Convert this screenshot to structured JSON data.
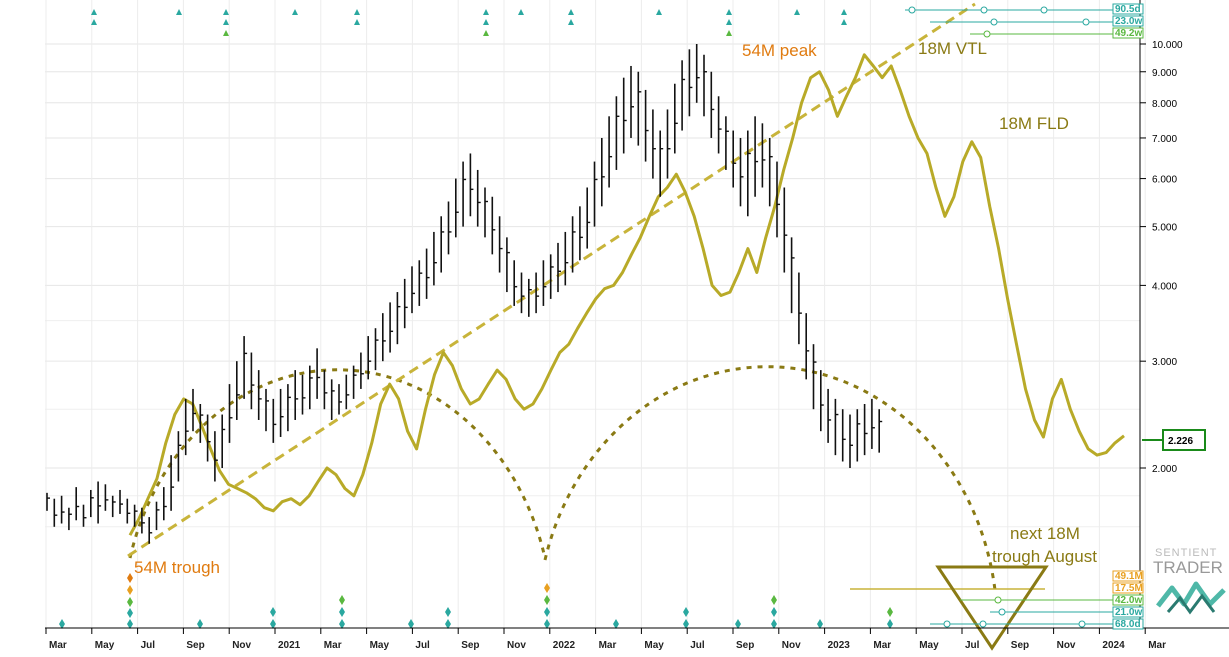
{
  "chart_data": {
    "type": "line",
    "scale": "log",
    "grid": true,
    "y_ticks": [
      2,
      3,
      4,
      5,
      6,
      7,
      8,
      9,
      10
    ],
    "y_tick_labels": [
      "2.000",
      "3.000",
      "4.000",
      "5.000",
      "6.000",
      "7.000",
      "8.000",
      "9.000",
      "10.000"
    ],
    "ylim": [
      1.45,
      11.6
    ],
    "x_tick_labels": [
      "Mar",
      "May",
      "Jul",
      "Sep",
      "Nov",
      "2021",
      "Mar",
      "May",
      "Jul",
      "Sep",
      "Nov",
      "2022",
      "Mar",
      "May",
      "Jul",
      "Sep",
      "Nov",
      "2023",
      "Mar",
      "May",
      "Jul",
      "Sep",
      "Nov",
      "2024",
      "Mar"
    ],
    "last_price": "2.226",
    "price_bars": [
      [
        1.7,
        1.82
      ],
      [
        1.6,
        1.78
      ],
      [
        1.62,
        1.8
      ],
      [
        1.58,
        1.72
      ],
      [
        1.64,
        1.86
      ],
      [
        1.6,
        1.74
      ],
      [
        1.66,
        1.84
      ],
      [
        1.62,
        1.9
      ],
      [
        1.7,
        1.88
      ],
      [
        1.66,
        1.8
      ],
      [
        1.68,
        1.84
      ],
      [
        1.62,
        1.78
      ],
      [
        1.6,
        1.74
      ],
      [
        1.56,
        1.72
      ],
      [
        1.5,
        1.66
      ],
      [
        1.58,
        1.76
      ],
      [
        1.64,
        1.86
      ],
      [
        1.7,
        2.1
      ],
      [
        1.9,
        2.3
      ],
      [
        2.1,
        2.6
      ],
      [
        2.3,
        2.7
      ],
      [
        2.2,
        2.55
      ],
      [
        2.05,
        2.45
      ],
      [
        1.9,
        2.3
      ],
      [
        2.0,
        2.45
      ],
      [
        2.2,
        2.75
      ],
      [
        2.4,
        3.0
      ],
      [
        2.6,
        3.3
      ],
      [
        2.5,
        3.1
      ],
      [
        2.4,
        2.9
      ],
      [
        2.3,
        2.7
      ],
      [
        2.2,
        2.6
      ],
      [
        2.25,
        2.7
      ],
      [
        2.3,
        2.75
      ],
      [
        2.4,
        2.9
      ],
      [
        2.45,
        2.85
      ],
      [
        2.5,
        2.95
      ],
      [
        2.6,
        3.15
      ],
      [
        2.5,
        2.9
      ],
      [
        2.4,
        2.8
      ],
      [
        2.45,
        2.75
      ],
      [
        2.5,
        2.85
      ],
      [
        2.6,
        2.95
      ],
      [
        2.7,
        3.1
      ],
      [
        2.8,
        3.3
      ],
      [
        2.9,
        3.4
      ],
      [
        3.0,
        3.6
      ],
      [
        3.1,
        3.75
      ],
      [
        3.2,
        3.9
      ],
      [
        3.4,
        4.1
      ],
      [
        3.6,
        4.3
      ],
      [
        3.7,
        4.4
      ],
      [
        3.8,
        4.6
      ],
      [
        4.0,
        4.9
      ],
      [
        4.2,
        5.2
      ],
      [
        4.5,
        5.5
      ],
      [
        4.8,
        6.0
      ],
      [
        5.0,
        6.4
      ],
      [
        5.2,
        6.6
      ],
      [
        5.0,
        6.2
      ],
      [
        4.8,
        5.8
      ],
      [
        4.5,
        5.6
      ],
      [
        4.2,
        5.2
      ],
      [
        3.9,
        4.8
      ],
      [
        3.7,
        4.4
      ],
      [
        3.6,
        4.2
      ],
      [
        3.55,
        4.1
      ],
      [
        3.6,
        4.2
      ],
      [
        3.7,
        4.4
      ],
      [
        3.8,
        4.5
      ],
      [
        3.9,
        4.7
      ],
      [
        4.0,
        4.9
      ],
      [
        4.2,
        5.2
      ],
      [
        4.4,
        5.4
      ],
      [
        4.6,
        5.8
      ],
      [
        5.0,
        6.4
      ],
      [
        5.4,
        7.0
      ],
      [
        5.8,
        7.6
      ],
      [
        6.2,
        8.2
      ],
      [
        6.6,
        8.8
      ],
      [
        7.0,
        9.2
      ],
      [
        6.8,
        9.0
      ],
      [
        6.4,
        8.4
      ],
      [
        6.0,
        7.8
      ],
      [
        5.6,
        7.2
      ],
      [
        6.0,
        7.8
      ],
      [
        6.6,
        8.6
      ],
      [
        7.2,
        9.4
      ],
      [
        7.6,
        9.8
      ],
      [
        8.0,
        10.0
      ],
      [
        7.6,
        9.6
      ],
      [
        7.0,
        9.0
      ],
      [
        6.6,
        8.2
      ],
      [
        6.2,
        7.6
      ],
      [
        5.8,
        7.2
      ],
      [
        5.4,
        7.0
      ],
      [
        5.2,
        7.2
      ],
      [
        5.6,
        7.6
      ],
      [
        5.8,
        7.4
      ],
      [
        5.4,
        7.0
      ],
      [
        4.8,
        6.4
      ],
      [
        4.2,
        5.8
      ],
      [
        3.6,
        4.8
      ],
      [
        3.2,
        4.2
      ],
      [
        2.8,
        3.6
      ],
      [
        2.5,
        3.2
      ],
      [
        2.3,
        2.9
      ],
      [
        2.2,
        2.7
      ],
      [
        2.1,
        2.6
      ],
      [
        2.05,
        2.5
      ],
      [
        2.0,
        2.45
      ],
      [
        2.05,
        2.5
      ],
      [
        2.1,
        2.55
      ],
      [
        2.15,
        2.6
      ],
      [
        2.12,
        2.5
      ]
    ],
    "series": [
      {
        "name": "18M FLD",
        "color": "#b8aa28",
        "y": [
          1.55,
          1.65,
          1.78,
          1.92,
          2.2,
          2.45,
          2.6,
          2.55,
          2.35,
          2.15,
          1.98,
          1.88,
          1.85,
          1.82,
          1.78,
          1.72,
          1.7,
          1.76,
          1.78,
          1.74,
          1.8,
          1.9,
          2.0,
          1.95,
          1.85,
          1.8,
          1.95,
          2.2,
          2.55,
          2.75,
          2.6,
          2.3,
          2.15,
          2.5,
          2.85,
          3.1,
          2.95,
          2.7,
          2.55,
          2.6,
          2.75,
          2.9,
          2.8,
          2.6,
          2.5,
          2.55,
          2.7,
          2.9,
          3.1,
          3.2,
          3.4,
          3.6,
          3.8,
          3.95,
          4.0,
          4.2,
          4.5,
          4.8,
          5.2,
          5.6,
          5.8,
          6.1,
          5.7,
          5.2,
          4.6,
          4.0,
          3.85,
          3.9,
          4.2,
          4.6,
          4.2,
          4.8,
          5.4,
          6.2,
          7.0,
          8.0,
          8.8,
          9.0,
          8.4,
          7.6,
          8.2,
          8.8,
          9.6,
          9.2,
          8.8,
          9.2,
          8.4,
          7.6,
          7.0,
          6.6,
          5.8,
          5.2,
          5.6,
          6.4,
          6.9,
          6.5,
          5.4,
          4.6,
          3.8,
          3.2,
          2.7,
          2.4,
          2.25,
          2.6,
          2.8,
          2.5,
          2.3,
          2.15,
          2.1,
          2.12,
          2.2,
          2.26
        ]
      }
    ],
    "annotations": [
      {
        "text": "54M peak",
        "color": "#e07b10"
      },
      {
        "text": "54M trough",
        "color": "#e07b10"
      },
      {
        "text": "18M VTL",
        "color": "#8a7a14"
      },
      {
        "text": "18M FLD",
        "color": "#8a7a14"
      },
      {
        "text": "next 18M",
        "color": "#8a7a14"
      },
      {
        "text": "trough August",
        "color": "#8a7a14"
      }
    ],
    "cycle_labels_top": [
      "90.5d",
      "23.0w",
      "49.2w"
    ],
    "cycle_labels_bottom": [
      "49.1M",
      "17.5M",
      "42.0w",
      "21.0w",
      "68.0d"
    ]
  },
  "logo": {
    "line1": "SENTIENT",
    "line2": "TRADER"
  }
}
